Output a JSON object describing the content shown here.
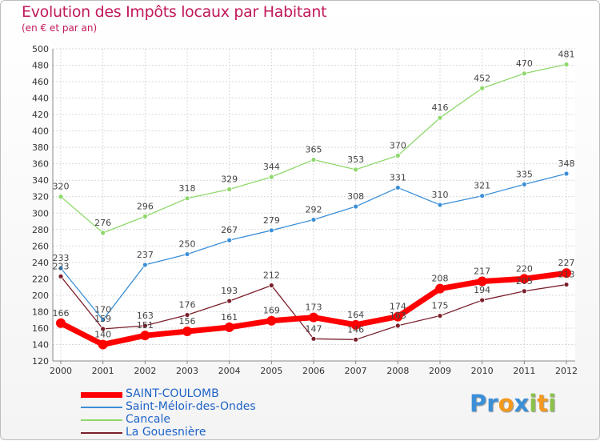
{
  "header": {
    "title": "Evolution des Impôts locaux par Habitant",
    "subtitle": "(en € et par an)"
  },
  "brand": {
    "letters": [
      "P",
      "r",
      "o",
      "x",
      "i",
      "t",
      "i"
    ],
    "colors": [
      "#3b8fd8",
      "#3b8fd8",
      "#f39a1e",
      "#3b8fd8",
      "#8bc34a",
      "#f39a1e",
      "#8bc34a"
    ]
  },
  "chart_data": {
    "type": "line",
    "title": "Evolution des Impôts locaux par Habitant",
    "subtitle": "(en € et par an)",
    "xlabel": "",
    "ylabel": "",
    "categories": [
      "2000",
      "2001",
      "2002",
      "2003",
      "2004",
      "2005",
      "2006",
      "2007",
      "2008",
      "2009",
      "2010",
      "2011",
      "2012"
    ],
    "ylim": [
      120,
      500
    ],
    "yticks": [
      120,
      140,
      160,
      180,
      200,
      220,
      240,
      260,
      280,
      300,
      320,
      340,
      360,
      380,
      400,
      420,
      440,
      460,
      480,
      500
    ],
    "grid": true,
    "legend_position": "bottom-left",
    "series": [
      {
        "name": "SAINT-COULOMB",
        "color": "#ff0000",
        "values": [
          166,
          140,
          151,
          156,
          161,
          169,
          173,
          164,
          174,
          208,
          217,
          220,
          227
        ],
        "labels": [
          "166",
          "140",
          "151",
          "156",
          "161",
          "169",
          "173",
          "164",
          "174",
          "208",
          "217",
          "220",
          "227"
        ]
      },
      {
        "name": "Saint-Méloir-des-Ondes",
        "color": "#3b8fd8",
        "values": [
          233,
          170,
          237,
          250,
          267,
          279,
          292,
          308,
          331,
          310,
          321,
          335,
          348
        ],
        "labels": [
          "233",
          "170",
          "237",
          "250",
          "267",
          "279",
          "292",
          "308",
          "331",
          "310",
          "321",
          "335",
          "348"
        ]
      },
      {
        "name": "Cancale",
        "color": "#8fd86b",
        "values": [
          320,
          276,
          296,
          318,
          329,
          344,
          365,
          353,
          370,
          416,
          452,
          470,
          481
        ],
        "labels": [
          "320",
          "276",
          "296",
          "318",
          "329",
          "344",
          "365",
          "353",
          "370",
          "416",
          "452",
          "470",
          "481"
        ]
      },
      {
        "name": "La Gouesnière",
        "color": "#7b1f2a",
        "values": [
          223,
          159,
          163,
          176,
          193,
          212,
          147,
          146,
          163,
          175,
          194,
          205,
          213
        ],
        "labels": [
          "223",
          "159",
          "163",
          "176",
          "193",
          "212",
          "147",
          "146",
          "163",
          "175",
          "194",
          "205",
          "213"
        ]
      }
    ]
  }
}
